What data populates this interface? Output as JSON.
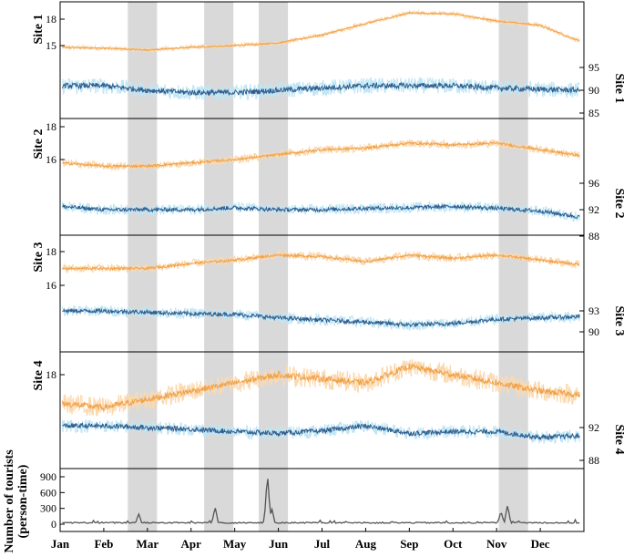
{
  "chart_data": {
    "type": "line",
    "title": "",
    "months": [
      "Jan",
      "Feb",
      "Mar",
      "Apr",
      "May",
      "Jun",
      "Jul",
      "Aug",
      "Sep",
      "Oct",
      "Nov",
      "Dec"
    ],
    "x_range_months": [
      0,
      12
    ],
    "holiday_bands_month": [
      [
        1.55,
        2.22
      ],
      [
        3.3,
        3.97
      ],
      [
        4.55,
        5.22
      ],
      [
        10.05,
        10.72
      ]
    ],
    "colors": {
      "temperature": "#f0a34a",
      "temperature_spread": "#fbd9b0",
      "humidity": "#2f5f8f",
      "humidity_spread": "#bfe6f6",
      "holiday_band": "#d9d9d9",
      "tourists": "#555555"
    },
    "panels": [
      {
        "name": "Site 1",
        "left_label": "Site 1",
        "right_label": "Site 1",
        "left_ticks": [
          "15",
          "18"
        ],
        "right_ticks": [
          "85",
          "90",
          "95"
        ],
        "temperature_profile": [
          [
            0,
            14.8
          ],
          [
            1,
            14.7
          ],
          [
            2,
            14.5
          ],
          [
            3,
            14.8
          ],
          [
            4,
            15.0
          ],
          [
            5,
            15.3
          ],
          [
            6,
            16.2
          ],
          [
            7,
            17.5
          ],
          [
            8,
            18.7
          ],
          [
            9,
            18.6
          ],
          [
            10,
            17.8
          ],
          [
            11,
            17.3
          ],
          [
            12,
            15.3
          ]
        ],
        "humidity_profile": [
          [
            0,
            91.0
          ],
          [
            1,
            91.0
          ],
          [
            2,
            90.0
          ],
          [
            3,
            89.5
          ],
          [
            4,
            89.5
          ],
          [
            5,
            90.0
          ],
          [
            6,
            90.5
          ],
          [
            7,
            91.0
          ],
          [
            8,
            91.0
          ],
          [
            9,
            91.0
          ],
          [
            10,
            90.5
          ],
          [
            11,
            90.2
          ],
          [
            12,
            90.0
          ]
        ]
      },
      {
        "name": "Site 2",
        "left_label": "Site 2",
        "right_label": "Site 2",
        "left_ticks": [
          "16",
          "18"
        ],
        "right_ticks": [
          "88",
          "92",
          "96"
        ],
        "temperature_profile": [
          [
            0,
            15.8
          ],
          [
            1,
            15.6
          ],
          [
            2,
            15.6
          ],
          [
            3,
            15.8
          ],
          [
            4,
            16.0
          ],
          [
            5,
            16.3
          ],
          [
            6,
            16.6
          ],
          [
            7,
            16.7
          ],
          [
            8,
            17.0
          ],
          [
            9,
            16.9
          ],
          [
            10,
            17.0
          ],
          [
            11,
            16.6
          ],
          [
            12,
            16.2
          ]
        ],
        "humidity_profile": [
          [
            0,
            92.5
          ],
          [
            1,
            92.0
          ],
          [
            2,
            92.0
          ],
          [
            3,
            92.0
          ],
          [
            4,
            92.3
          ],
          [
            5,
            92.0
          ],
          [
            6,
            92.0
          ],
          [
            7,
            92.2
          ],
          [
            8,
            92.3
          ],
          [
            9,
            92.5
          ],
          [
            10,
            92.2
          ],
          [
            11,
            91.8
          ],
          [
            12,
            90.8
          ]
        ]
      },
      {
        "name": "Site 3",
        "left_label": "Site 3",
        "right_label": "Site 3",
        "left_ticks": [
          "16",
          "18"
        ],
        "right_ticks": [
          "90",
          "93"
        ],
        "temperature_profile": [
          [
            0,
            17.0
          ],
          [
            1,
            17.0
          ],
          [
            2,
            17.0
          ],
          [
            3,
            17.3
          ],
          [
            4,
            17.5
          ],
          [
            5,
            17.8
          ],
          [
            6,
            17.7
          ],
          [
            7,
            17.4
          ],
          [
            8,
            17.8
          ],
          [
            9,
            17.6
          ],
          [
            10,
            17.8
          ],
          [
            11,
            17.5
          ],
          [
            12,
            17.2
          ]
        ],
        "humidity_profile": [
          [
            0,
            93.0
          ],
          [
            1,
            93.0
          ],
          [
            2,
            92.8
          ],
          [
            3,
            92.6
          ],
          [
            4,
            92.5
          ],
          [
            5,
            92.0
          ],
          [
            6,
            91.7
          ],
          [
            7,
            91.4
          ],
          [
            8,
            91.0
          ],
          [
            9,
            91.2
          ],
          [
            10,
            91.8
          ],
          [
            11,
            92.0
          ],
          [
            12,
            92.2
          ]
        ]
      },
      {
        "name": "Site 4",
        "left_label": "Site 4",
        "right_label": "Site 4",
        "left_ticks": [
          "18"
        ],
        "right_ticks": [
          "88",
          "92"
        ],
        "temperature_profile": [
          [
            0,
            17.3
          ],
          [
            1,
            17.2
          ],
          [
            2,
            17.4
          ],
          [
            3,
            17.6
          ],
          [
            4,
            17.8
          ],
          [
            5,
            18.0
          ],
          [
            6,
            17.9
          ],
          [
            7,
            17.8
          ],
          [
            8,
            18.2
          ],
          [
            9,
            18.0
          ],
          [
            10,
            17.8
          ],
          [
            11,
            17.6
          ],
          [
            12,
            17.5
          ]
        ],
        "humidity_profile": [
          [
            0,
            92.2
          ],
          [
            1,
            92.2
          ],
          [
            2,
            92.0
          ],
          [
            3,
            91.8
          ],
          [
            4,
            91.5
          ],
          [
            5,
            91.3
          ],
          [
            6,
            91.6
          ],
          [
            7,
            92.2
          ],
          [
            8,
            91.3
          ],
          [
            9,
            91.5
          ],
          [
            10,
            91.5
          ],
          [
            11,
            90.8
          ],
          [
            12,
            91.0
          ]
        ]
      }
    ],
    "tourists": {
      "ylabel": "Number of tourists (person-time)",
      "ticks": [
        "0",
        "300",
        "600",
        "900"
      ],
      "ylim": [
        0,
        1000
      ],
      "baseline": 15,
      "peaks": [
        {
          "month": 1.8,
          "value": 200
        },
        {
          "month": 3.55,
          "value": 330
        },
        {
          "month": 4.75,
          "value": 950
        },
        {
          "month": 4.85,
          "value": 300
        },
        {
          "month": 10.25,
          "value": 370
        },
        {
          "month": 10.1,
          "value": 250
        }
      ]
    }
  }
}
